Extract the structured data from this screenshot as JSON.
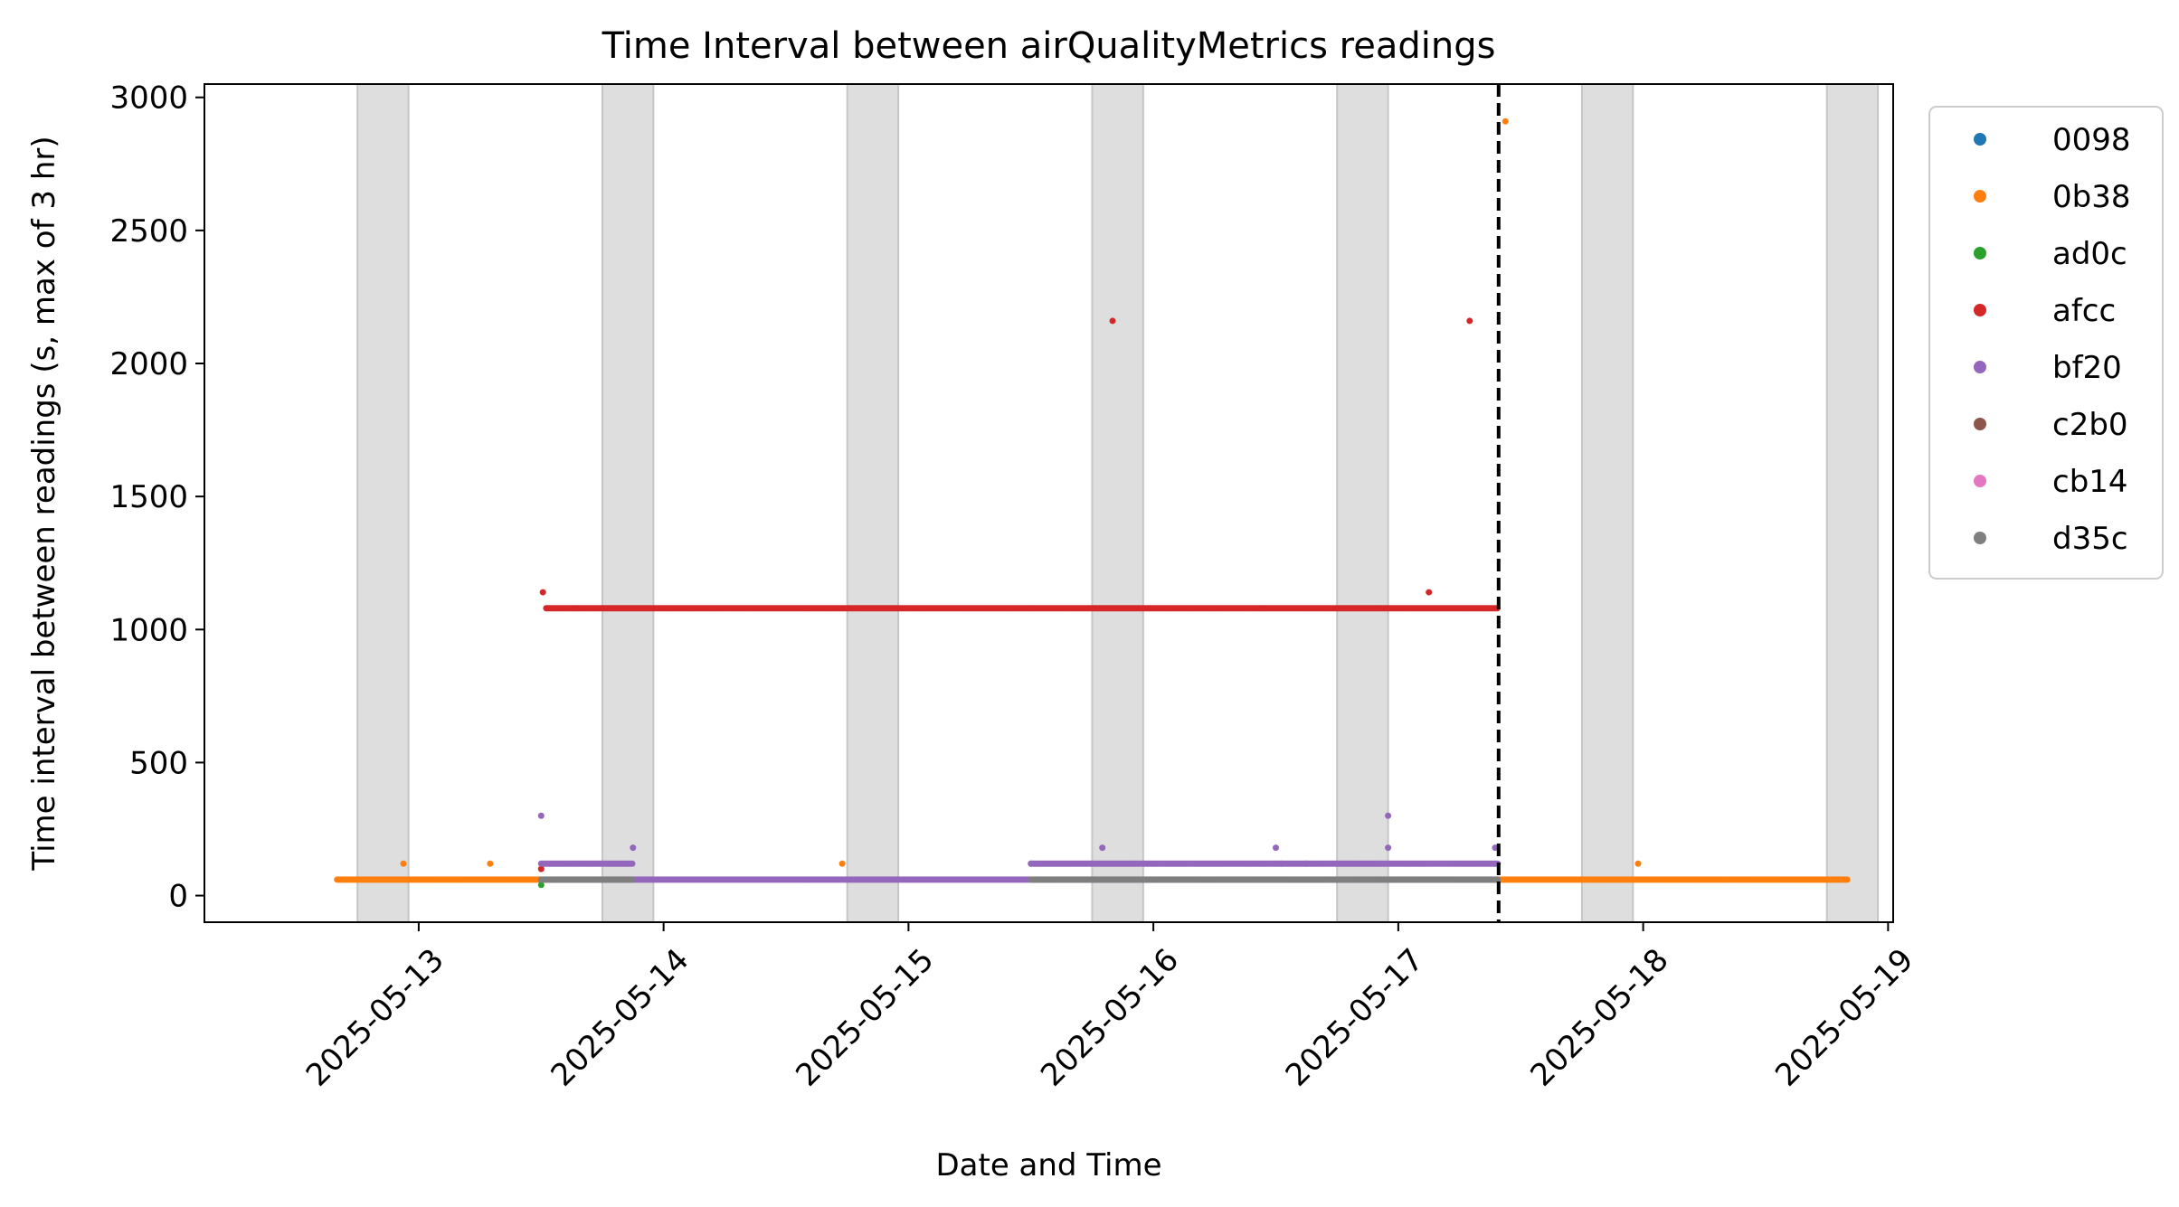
{
  "chart_data": {
    "type": "scatter",
    "title": "Time Interval between airQualityMetrics readings",
    "xlabel": "Date and Time",
    "ylabel": "Time interval between readings (s, max of 3 hr)",
    "x_axis_type": "date",
    "xlim": [
      "2025-05-12T03:00",
      "2025-05-19T00:30"
    ],
    "ylim": [
      -100,
      3050
    ],
    "x_ticks": [
      "2025-05-13",
      "2025-05-14",
      "2025-05-15",
      "2025-05-16",
      "2025-05-17",
      "2025-05-18",
      "2025-05-19"
    ],
    "y_ticks": [
      0,
      500,
      1000,
      1500,
      2000,
      2500,
      3000
    ],
    "night_bands": [
      [
        "2025-05-12T18:00",
        "2025-05-12T23:00"
      ],
      [
        "2025-05-13T18:00",
        "2025-05-13T23:00"
      ],
      [
        "2025-05-14T18:00",
        "2025-05-14T23:00"
      ],
      [
        "2025-05-15T18:00",
        "2025-05-15T23:00"
      ],
      [
        "2025-05-16T18:00",
        "2025-05-16T23:00"
      ],
      [
        "2025-05-17T18:00",
        "2025-05-17T23:00"
      ],
      [
        "2025-05-18T18:00",
        "2025-05-18T23:00"
      ]
    ],
    "vline": {
      "x": "2025-05-17T09:50",
      "style": "dashed",
      "color": "#000000"
    },
    "legend_position": "outside-right",
    "grid": false,
    "series": [
      {
        "name": "0098",
        "color": "#1f77b4",
        "runs": [],
        "points": []
      },
      {
        "name": "0b38",
        "color": "#ff7f0e",
        "runs": [
          {
            "start": "2025-05-12T16:00",
            "end": "2025-05-13T12:00",
            "value": 60
          },
          {
            "start": "2025-05-17T10:00",
            "end": "2025-05-18T20:00",
            "value": 60
          }
        ],
        "points": [
          {
            "x": "2025-05-12T22:30",
            "y": 120
          },
          {
            "x": "2025-05-13T07:00",
            "y": 120
          },
          {
            "x": "2025-05-14T17:30",
            "y": 120
          },
          {
            "x": "2025-05-17T10:30",
            "y": 2910
          },
          {
            "x": "2025-05-17T23:30",
            "y": 120
          }
        ]
      },
      {
        "name": "ad0c",
        "color": "#2ca02c",
        "runs": [],
        "points": [
          {
            "x": "2025-05-13T12:00",
            "y": 40
          },
          {
            "x": "2025-05-16T12:30",
            "y": 120
          },
          {
            "x": "2025-05-16T15:00",
            "y": 120
          }
        ]
      },
      {
        "name": "afcc",
        "color": "#d62728",
        "runs": [
          {
            "start": "2025-05-13T12:30",
            "end": "2025-05-17T09:45",
            "value": 1080
          }
        ],
        "points": [
          {
            "x": "2025-05-13T12:10",
            "y": 1140
          },
          {
            "x": "2025-05-15T20:00",
            "y": 2160
          },
          {
            "x": "2025-05-17T03:00",
            "y": 1140
          },
          {
            "x": "2025-05-17T07:00",
            "y": 2160
          },
          {
            "x": "2025-05-13T12:00",
            "y": 100
          }
        ]
      },
      {
        "name": "bf20",
        "color": "#9467bd",
        "runs": [
          {
            "start": "2025-05-13T12:00",
            "end": "2025-05-17T09:50",
            "value": 60
          },
          {
            "start": "2025-05-13T12:00",
            "end": "2025-05-13T21:00",
            "value": 120
          },
          {
            "start": "2025-05-15T12:00",
            "end": "2025-05-17T09:50",
            "value": 120
          }
        ],
        "points": [
          {
            "x": "2025-05-13T12:00",
            "y": 300
          },
          {
            "x": "2025-05-13T21:00",
            "y": 180
          },
          {
            "x": "2025-05-15T12:00",
            "y": 120
          },
          {
            "x": "2025-05-15T19:00",
            "y": 180
          },
          {
            "x": "2025-05-16T12:00",
            "y": 180
          },
          {
            "x": "2025-05-16T23:00",
            "y": 300
          },
          {
            "x": "2025-05-16T23:00",
            "y": 180
          },
          {
            "x": "2025-05-17T09:30",
            "y": 180
          }
        ]
      },
      {
        "name": "c2b0",
        "color": "#8c564b",
        "runs": [],
        "points": []
      },
      {
        "name": "cb14",
        "color": "#e377c2",
        "runs": [],
        "points": []
      },
      {
        "name": "d35c",
        "color": "#7f7f7f",
        "runs": [
          {
            "start": "2025-05-13T12:00",
            "end": "2025-05-13T21:00",
            "value": 60
          },
          {
            "start": "2025-05-15T12:00",
            "end": "2025-05-17T09:50",
            "value": 60
          }
        ],
        "points": []
      }
    ]
  }
}
